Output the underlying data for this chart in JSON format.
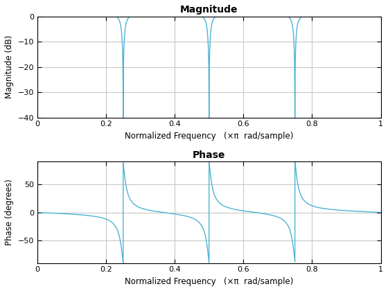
{
  "title_magnitude": "Magnitude",
  "title_phase": "Phase",
  "xlabel": "Normalized Frequency   (×π  rad/sample)",
  "ylabel_magnitude": "Magnitude (dB)",
  "ylabel_phase": "Phase (degrees)",
  "line_color": "#4db3d4",
  "line_width": 1.0,
  "xlim": [
    0,
    1
  ],
  "ylim_magnitude": [
    -40,
    0
  ],
  "ylim_phase": [
    -90,
    90
  ],
  "notch_freqs": [
    0.25,
    0.5,
    0.75
  ],
  "r": 0.97,
  "background_color": "#ffffff",
  "grid_color": "#c8c8c8",
  "yticks_magnitude": [
    0,
    -10,
    -20,
    -30,
    -40
  ],
  "yticks_phase": [
    -50,
    0,
    50
  ],
  "xticks": [
    0,
    0.2,
    0.4,
    0.6,
    0.8,
    1.0
  ]
}
